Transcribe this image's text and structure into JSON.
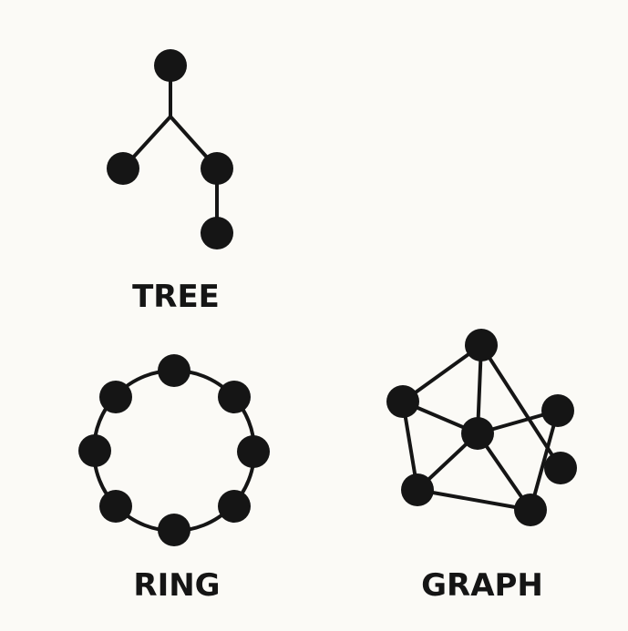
{
  "diagrams": {
    "tree": {
      "label": "TREE"
    },
    "ring": {
      "label": "RING"
    },
    "graph": {
      "label": "GRAPH"
    }
  },
  "colors": {
    "background": "#fbfaf6",
    "ink": "#151515"
  }
}
